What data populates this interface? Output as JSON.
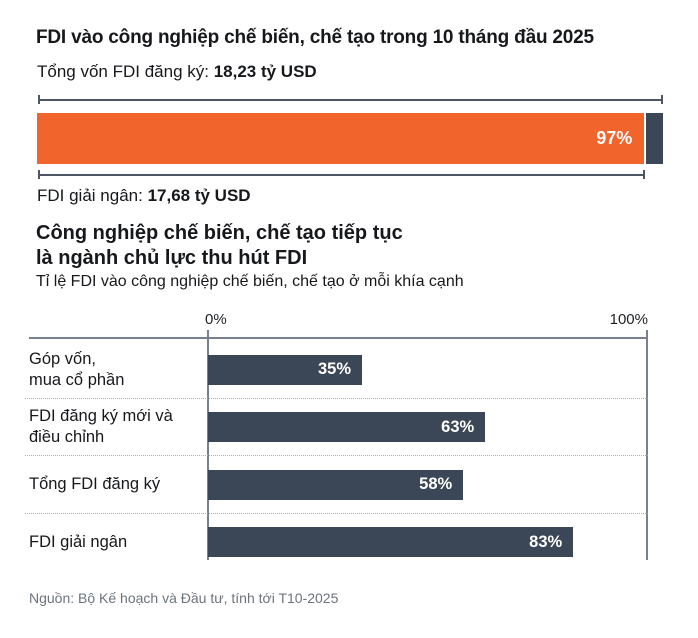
{
  "header": {
    "title": "FDI vào công nghiệp chế biến, chế tạo trong 10 tháng đầu 2025",
    "registered_label": "Tổng vốn FDI đăng ký: ",
    "registered_value": "18,23 tỷ USD",
    "disbursed_label": "FDI giải ngân: ",
    "disbursed_value": "17,68 tỷ USD"
  },
  "section": {
    "heading_line1": "Công nghiệp chế biến, chế tạo tiếp tục",
    "heading_line2": "là ngành chủ lực thu hút FDI",
    "subtitle": "Tỉ lệ FDI vào công nghiệp chế biến, chế tạo ở mỗi khía cạnh"
  },
  "footer": {
    "source": "Nguồn: Bộ Kế hoạch và Đầu tư, tính tới T10-2025"
  },
  "colors": {
    "background": "#FFFFFF",
    "text": "#16181B",
    "accent_orange": "#F1652C",
    "navy": "#3B4757",
    "bracket_line": "#4C5665",
    "axis_line": "#77818E",
    "dotted_separator": "#A9B2BC",
    "bar_label_text": "#FFFFFF",
    "source_text": "#6B747E"
  },
  "chart_data": [
    {
      "type": "bar",
      "subtype": "single-stacked-horizontal",
      "title": "Tổng vốn FDI đăng ký: 18,23 tỷ USD",
      "annotation": "FDI giải ngân: 17,68 tỷ USD",
      "xlim": [
        0,
        100
      ],
      "segments": [
        {
          "value": 97,
          "label": "97%",
          "color": "#F1652C"
        },
        {
          "value": 3,
          "label": "",
          "color": "#3B4757"
        }
      ],
      "data_labels": true,
      "legend": "none"
    },
    {
      "type": "bar",
      "orientation": "horizontal",
      "title": "Tỉ lệ FDI vào công nghiệp chế biến, chế tạo ở mỗi khía cạnh",
      "categories": [
        "Góp vốn, mua cổ phần",
        "FDI đăng ký mới và điều chỉnh",
        "Tổng FDI đăng ký",
        "FDI giải ngân"
      ],
      "category_lines": [
        [
          "Góp vốn,",
          "mua cổ phần"
        ],
        [
          "FDI đăng ký mới và",
          "điều chỉnh"
        ],
        [
          "Tổng FDI đăng ký"
        ],
        [
          "FDI giải ngân"
        ]
      ],
      "values": [
        35,
        63,
        58,
        83
      ],
      "value_labels": [
        "35%",
        "63%",
        "58%",
        "83%"
      ],
      "xlim": [
        0,
        100
      ],
      "x_tick_labels": [
        "0%",
        "100%"
      ],
      "bar_color": "#3B4757",
      "grid": "vertical lines at 0% and 100% only",
      "legend": "none",
      "data_labels": true
    }
  ]
}
